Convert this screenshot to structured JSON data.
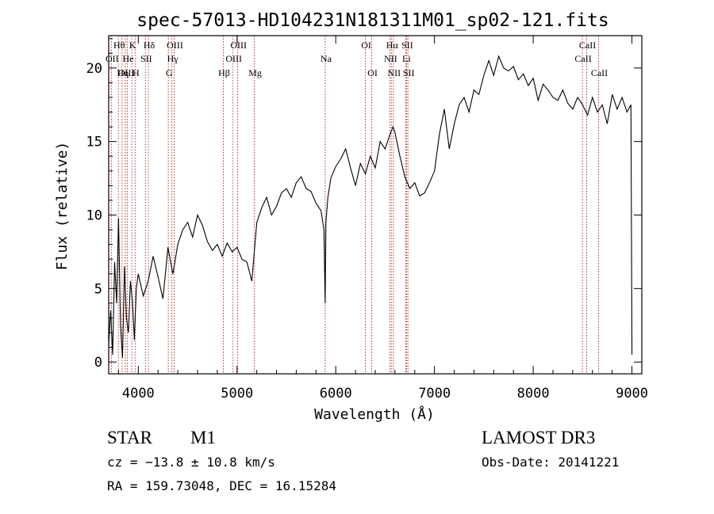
{
  "chart_data": {
    "type": "line",
    "title": "spec-57013-HD104231N181311M01_sp02-121.fits",
    "xlabel": "Wavelength (Å)",
    "ylabel": "Flux (relative)",
    "xlim": [
      3700,
      9100
    ],
    "ylim": [
      -0.8,
      22.2
    ],
    "x_ticks": [
      4000,
      5000,
      6000,
      7000,
      8000,
      9000
    ],
    "x_tick_labels": [
      "4000",
      "5000",
      "6000",
      "7000",
      "8000",
      "9000"
    ],
    "y_ticks": [
      0,
      5,
      10,
      15,
      20
    ],
    "y_tick_labels": [
      "0",
      "5",
      "10",
      "15",
      "20"
    ],
    "series": [
      {
        "name": "flux",
        "x": [
          3700,
          3720,
          3740,
          3760,
          3780,
          3800,
          3820,
          3840,
          3860,
          3880,
          3900,
          3920,
          3940,
          3960,
          3980,
          4000,
          4050,
          4100,
          4150,
          4200,
          4250,
          4300,
          4350,
          4400,
          4450,
          4500,
          4550,
          4600,
          4650,
          4700,
          4750,
          4800,
          4850,
          4900,
          4950,
          5000,
          5050,
          5100,
          5150,
          5200,
          5250,
          5300,
          5350,
          5400,
          5450,
          5500,
          5550,
          5600,
          5650,
          5700,
          5750,
          5800,
          5850,
          5880,
          5893,
          5900,
          5920,
          5950,
          6000,
          6050,
          6100,
          6150,
          6200,
          6250,
          6300,
          6350,
          6400,
          6450,
          6500,
          6550,
          6580,
          6600,
          6650,
          6700,
          6750,
          6800,
          6850,
          6900,
          6950,
          7000,
          7050,
          7100,
          7150,
          7200,
          7250,
          7300,
          7350,
          7400,
          7450,
          7500,
          7550,
          7600,
          7650,
          7700,
          7750,
          7800,
          7850,
          7900,
          7950,
          8000,
          8050,
          8100,
          8150,
          8200,
          8250,
          8300,
          8350,
          8400,
          8450,
          8500,
          8550,
          8600,
          8650,
          8700,
          8750,
          8800,
          8850,
          8900,
          8950,
          8990,
          9000
        ],
        "values": [
          1.2,
          3.5,
          0.5,
          6.8,
          4.0,
          9.8,
          2.5,
          0.3,
          6.5,
          3.0,
          2.0,
          5.5,
          4.2,
          1.5,
          5.0,
          6.0,
          4.5,
          5.5,
          7.2,
          5.8,
          4.3,
          7.8,
          6.0,
          8.0,
          9.0,
          9.5,
          8.5,
          10.0,
          9.3,
          8.2,
          7.6,
          8.0,
          7.2,
          8.1,
          7.5,
          7.8,
          7.0,
          6.8,
          5.5,
          9.5,
          10.5,
          11.2,
          10.0,
          10.6,
          11.5,
          11.8,
          11.2,
          12.2,
          12.6,
          11.8,
          11.6,
          10.8,
          10.3,
          9.0,
          4.0,
          9.5,
          11.2,
          12.5,
          13.3,
          13.8,
          14.5,
          13.2,
          12.0,
          13.5,
          12.8,
          14.0,
          13.2,
          15.0,
          14.5,
          15.5,
          16.0,
          15.6,
          14.0,
          12.6,
          11.8,
          12.2,
          11.3,
          11.5,
          12.2,
          13.0,
          15.5,
          17.2,
          14.5,
          16.2,
          17.5,
          18.0,
          17.0,
          18.5,
          18.2,
          19.5,
          20.5,
          19.5,
          20.8,
          20.0,
          19.8,
          20.1,
          19.2,
          19.6,
          18.8,
          19.3,
          17.8,
          18.9,
          18.5,
          18.0,
          17.8,
          18.5,
          17.6,
          17.2,
          18.0,
          17.5,
          16.8,
          18.0,
          17.0,
          17.5,
          16.2,
          18.2,
          17.2,
          18.0,
          17.0,
          17.5,
          0.5
        ]
      }
    ],
    "line_markers": [
      {
        "label": "Hθ",
        "x": 3798,
        "row": 0
      },
      {
        "label": "K",
        "x": 3934,
        "row": 0
      },
      {
        "label": "Hδ",
        "x": 4102,
        "row": 0
      },
      {
        "label": "OIII",
        "x": 4363,
        "row": 0
      },
      {
        "label": "OIII",
        "x": 5007,
        "row": 0
      },
      {
        "label": "OI",
        "x": 6300,
        "row": 0
      },
      {
        "label": "Hα",
        "x": 6563,
        "row": 0
      },
      {
        "label": "SII",
        "x": 6717,
        "row": 0
      },
      {
        "label": "CaII",
        "x": 8542,
        "row": 0
      },
      {
        "label": "OII",
        "x": 3727,
        "row": 1
      },
      {
        "label": "He",
        "x": 3889,
        "row": 1
      },
      {
        "label": "SII",
        "x": 4072,
        "row": 1
      },
      {
        "label": "Hγ",
        "x": 4340,
        "row": 1
      },
      {
        "label": "OIII",
        "x": 4959,
        "row": 1
      },
      {
        "label": "Na",
        "x": 5893,
        "row": 1
      },
      {
        "label": "NII",
        "x": 6548,
        "row": 1
      },
      {
        "label": "Li",
        "x": 6708,
        "row": 1
      },
      {
        "label": "CaII",
        "x": 8498,
        "row": 1
      },
      {
        "label": "OIII",
        "x": 3869,
        "row": 2
      },
      {
        "label": "Hη",
        "x": 3835,
        "row": 2
      },
      {
        "label": "H",
        "x": 3968,
        "row": 2
      },
      {
        "label": "G",
        "x": 4304,
        "row": 2
      },
      {
        "label": "Hβ",
        "x": 4861,
        "row": 2
      },
      {
        "label": "Mg",
        "x": 5175,
        "row": 2
      },
      {
        "label": "OI",
        "x": 6364,
        "row": 2
      },
      {
        "label": "NII",
        "x": 6583,
        "row": 2
      },
      {
        "label": "SII",
        "x": 6731,
        "row": 2
      },
      {
        "label": "CaII",
        "x": 8662,
        "row": 2
      }
    ],
    "marker_color": "#b22222"
  },
  "info": {
    "object_type": "STAR",
    "subclass": "M1",
    "survey": "LAMOST DR3",
    "redshift": "cz = −13.8 ± 10.8 km/s",
    "obs_date": "Obs-Date: 20141221",
    "coords": "RA = 159.73048, DEC =  16.15284"
  }
}
